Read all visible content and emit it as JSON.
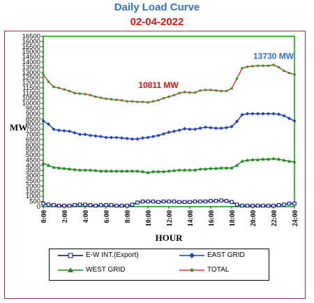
{
  "header": {
    "title": "Daily Load Curve",
    "date": "02-04-2022"
  },
  "colors": {
    "title": "#2e6fd6",
    "date": "#e01010",
    "plot_bg": "#ffffff",
    "plot_border": "#00a000",
    "frame_border": "#a03040",
    "ew": "#00008b",
    "east": "#1f3fc8",
    "west": "#1a8c1a",
    "total": "#e03030",
    "total_marker": "#2aa02a",
    "label_peak": "#e01010",
    "label_max": "#2e6fd6"
  },
  "chart_data": {
    "type": "line",
    "title": "Daily Load Curve",
    "subtitle": "02-04-2022",
    "xlabel": "HOUR",
    "ylabel": "MW",
    "xlim": [
      0,
      24
    ],
    "ylim": [
      0,
      16500
    ],
    "yticks": [
      0,
      500,
      1000,
      1500,
      2000,
      2500,
      3000,
      3500,
      4000,
      4500,
      5000,
      5500,
      6000,
      6500,
      7000,
      7500,
      8000,
      8500,
      9000,
      9500,
      10000,
      10500,
      11000,
      11500,
      12000,
      12500,
      13000,
      13500,
      14000,
      14500,
      15000,
      15500,
      16000,
      16500
    ],
    "xticks": [
      0,
      2,
      4,
      6,
      8,
      10,
      12,
      14,
      16,
      18,
      20,
      22,
      24
    ],
    "xtick_labels": [
      "0:00",
      "2:00",
      "4:00",
      "6:00",
      "8:00",
      "10:00",
      "12:00",
      "14:00",
      "16:00",
      "18:00",
      "20:00",
      "22:00",
      "24:00"
    ],
    "x": [
      0,
      0.5,
      1,
      1.5,
      2,
      2.5,
      3,
      3.5,
      4,
      4.5,
      5,
      5.5,
      6,
      6.5,
      7,
      7.5,
      8,
      8.5,
      9,
      9.5,
      10,
      10.5,
      11,
      11.5,
      12,
      12.5,
      13,
      13.5,
      14,
      14.5,
      15,
      15.5,
      16,
      16.5,
      17,
      17.5,
      18,
      18.5,
      19,
      19.5,
      20,
      20.5,
      21,
      21.5,
      22,
      22.5,
      23,
      23.5,
      24
    ],
    "series": [
      {
        "name": "E-W INT.(Export)",
        "values": [
          300,
          200,
          150,
          100,
          100,
          100,
          150,
          200,
          200,
          150,
          100,
          150,
          150,
          150,
          100,
          100,
          100,
          200,
          400,
          500,
          500,
          500,
          450,
          500,
          500,
          500,
          450,
          450,
          450,
          500,
          500,
          500,
          550,
          550,
          600,
          550,
          450,
          200,
          100,
          100,
          100,
          100,
          100,
          100,
          100,
          150,
          200,
          300,
          300
        ]
      },
      {
        "name": "EAST GRID",
        "values": [
          8300,
          8000,
          7500,
          7400,
          7350,
          7300,
          7150,
          7000,
          7000,
          6900,
          6850,
          6800,
          6700,
          6700,
          6700,
          6650,
          6600,
          6550,
          6550,
          6650,
          6700,
          6800,
          6900,
          7050,
          7200,
          7300,
          7400,
          7550,
          7500,
          7500,
          7600,
          7700,
          7650,
          7600,
          7600,
          7650,
          7750,
          8250,
          8900,
          9000,
          9000,
          9000,
          9000,
          9000,
          9000,
          8950,
          8800,
          8550,
          8300
        ]
      },
      {
        "name": "WEST GRID",
        "values": [
          4200,
          4000,
          3800,
          3750,
          3700,
          3650,
          3600,
          3550,
          3550,
          3550,
          3500,
          3450,
          3450,
          3450,
          3450,
          3450,
          3450,
          3450,
          3450,
          3400,
          3300,
          3400,
          3400,
          3400,
          3450,
          3500,
          3550,
          3550,
          3550,
          3550,
          3650,
          3650,
          3700,
          3700,
          3750,
          3750,
          3750,
          4000,
          4400,
          4500,
          4550,
          4550,
          4600,
          4600,
          4650,
          4600,
          4500,
          4400,
          4350
        ]
      },
      {
        "name": "TOTAL",
        "values": [
          12800,
          12100,
          11600,
          11500,
          11350,
          11200,
          11000,
          10950,
          10900,
          10800,
          10650,
          10550,
          10450,
          10400,
          10350,
          10300,
          10200,
          10200,
          10150,
          10150,
          10100,
          10200,
          10300,
          10500,
          10650,
          10800,
          11000,
          11100,
          11050,
          11050,
          11250,
          11300,
          11300,
          11250,
          11200,
          11200,
          11450,
          12400,
          13400,
          13550,
          13600,
          13650,
          13650,
          13650,
          13730,
          13500,
          13150,
          12950,
          12800
        ]
      }
    ],
    "annotations": [
      {
        "text": "10811 MW",
        "x": 11,
        "y": 11500
      },
      {
        "text": "13730 MW",
        "x": 22,
        "y": 14300
      }
    ],
    "grid": false,
    "legend_position": "bottom"
  }
}
